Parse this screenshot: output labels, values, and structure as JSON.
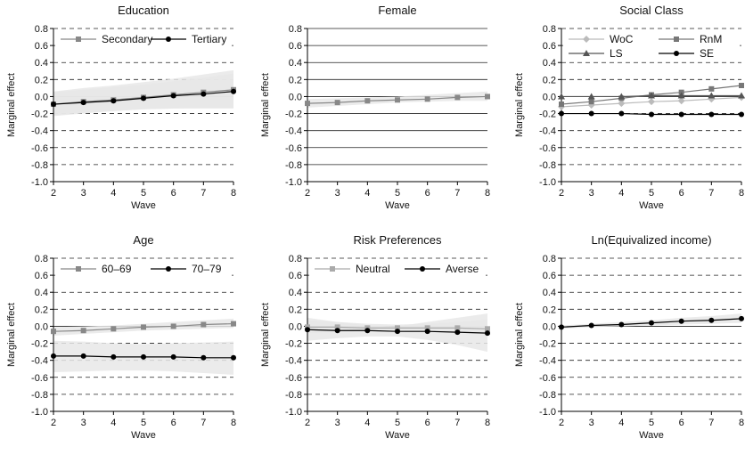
{
  "figure": {
    "ylabel": "Marginal effect",
    "xlabel": "Wave",
    "y_ticks": [
      "0.8",
      "0.6",
      "0.4",
      "0.2",
      "0.0",
      "-0.2",
      "-0.4",
      "-0.6",
      "-0.8",
      "-1.0"
    ],
    "x_ticks": [
      "2",
      "3",
      "4",
      "5",
      "6",
      "7",
      "8"
    ]
  },
  "chart_data": [
    {
      "type": "line",
      "title": "Education",
      "xlabel": "Wave",
      "ylabel": "Marginal effect",
      "x": [
        2,
        3,
        4,
        5,
        6,
        7,
        8
      ],
      "ylim": [
        -1.0,
        0.8
      ],
      "grid": "dashed",
      "legend": "top",
      "series": [
        {
          "name": "Secondary",
          "color": "#888888",
          "marker": "square",
          "values": [
            -0.09,
            -0.06,
            -0.04,
            -0.01,
            0.02,
            0.05,
            0.08
          ],
          "ci_low": [
            -0.23,
            -0.2,
            -0.17,
            -0.15,
            -0.14,
            -0.14,
            -0.14
          ],
          "ci_high": [
            0.06,
            0.1,
            0.13,
            0.17,
            0.21,
            0.26,
            0.31
          ]
        },
        {
          "name": "Tertiary",
          "color": "#000000",
          "marker": "circle",
          "values": [
            -0.09,
            -0.07,
            -0.05,
            -0.02,
            0.01,
            0.03,
            0.06
          ],
          "ci_low": [
            -0.22,
            -0.19,
            -0.17,
            -0.15,
            -0.14,
            -0.13,
            -0.13
          ],
          "ci_high": [
            0.05,
            0.08,
            0.11,
            0.14,
            0.18,
            0.22,
            0.27
          ]
        }
      ]
    },
    {
      "type": "line",
      "title": "Female",
      "xlabel": "Wave",
      "ylabel": "Marginal effect",
      "x": [
        2,
        3,
        4,
        5,
        6,
        7,
        8
      ],
      "ylim": [
        -1.0,
        0.8
      ],
      "grid": "solid",
      "legend": "none",
      "series": [
        {
          "name": "",
          "color": "#888888",
          "marker": "square",
          "values": [
            -0.08,
            -0.07,
            -0.05,
            -0.04,
            -0.03,
            -0.01,
            0.0
          ],
          "ci_low": [
            -0.13,
            -0.11,
            -0.09,
            -0.07,
            -0.06,
            -0.05,
            -0.05
          ],
          "ci_high": [
            -0.03,
            -0.02,
            -0.01,
            0.0,
            0.02,
            0.04,
            0.06
          ]
        }
      ]
    },
    {
      "type": "line",
      "title": "Social Class",
      "xlabel": "Wave",
      "ylabel": "Marginal effect",
      "x": [
        2,
        3,
        4,
        5,
        6,
        7,
        8
      ],
      "ylim": [
        -1.0,
        0.8
      ],
      "grid": "dashed",
      "legend": "top",
      "series": [
        {
          "name": "WoC",
          "color": "#bbbbbb",
          "marker": "diamond",
          "values": [
            -0.12,
            -0.1,
            -0.08,
            -0.06,
            -0.05,
            -0.03,
            -0.01
          ]
        },
        {
          "name": "RnM",
          "color": "#777777",
          "marker": "square",
          "values": [
            -0.09,
            -0.06,
            -0.02,
            0.02,
            0.05,
            0.09,
            0.13
          ]
        },
        {
          "name": "LS",
          "color": "#555555",
          "marker": "triangle",
          "values": [
            0.0,
            0.0,
            0.0,
            0.01,
            0.01,
            0.01,
            0.01
          ]
        },
        {
          "name": "SE",
          "color": "#000000",
          "marker": "circle",
          "values": [
            -0.2,
            -0.2,
            -0.2,
            -0.21,
            -0.21,
            -0.21,
            -0.21
          ]
        }
      ]
    },
    {
      "type": "line",
      "title": "Age",
      "xlabel": "Wave",
      "ylabel": "Marginal effect",
      "x": [
        2,
        3,
        4,
        5,
        6,
        7,
        8
      ],
      "ylim": [
        -1.0,
        0.8
      ],
      "grid": "dashed",
      "legend": "top",
      "series": [
        {
          "name": "60–69",
          "color": "#888888",
          "marker": "square",
          "values": [
            -0.06,
            -0.05,
            -0.03,
            -0.01,
            0.0,
            0.02,
            0.03
          ],
          "ci_low": [
            -0.11,
            -0.09,
            -0.07,
            -0.05,
            -0.04,
            -0.03,
            -0.02
          ],
          "ci_high": [
            -0.01,
            0.0,
            0.01,
            0.03,
            0.05,
            0.07,
            0.09
          ]
        },
        {
          "name": "70–79",
          "color": "#000000",
          "marker": "circle",
          "values": [
            -0.35,
            -0.35,
            -0.36,
            -0.36,
            -0.36,
            -0.37,
            -0.37
          ],
          "ci_low": [
            -0.54,
            -0.53,
            -0.52,
            -0.52,
            -0.53,
            -0.55,
            -0.57
          ],
          "ci_high": [
            -0.17,
            -0.18,
            -0.2,
            -0.21,
            -0.2,
            -0.19,
            -0.18
          ]
        }
      ]
    },
    {
      "type": "line",
      "title": "Risk Preferences",
      "xlabel": "Wave",
      "ylabel": "Marginal effect",
      "x": [
        2,
        3,
        4,
        5,
        6,
        7,
        8
      ],
      "ylim": [
        -1.0,
        0.8
      ],
      "grid": "dashed",
      "legend": "top",
      "series": [
        {
          "name": "Neutral",
          "color": "#aaaaaa",
          "marker": "square",
          "values": [
            -0.01,
            -0.01,
            -0.02,
            -0.02,
            -0.02,
            -0.02,
            -0.03
          ],
          "ci_low": [
            -0.08,
            -0.07,
            -0.06,
            -0.05,
            -0.06,
            -0.07,
            -0.09
          ],
          "ci_high": [
            0.07,
            0.05,
            0.03,
            0.02,
            0.03,
            0.05,
            0.08
          ]
        },
        {
          "name": "Averse",
          "color": "#000000",
          "marker": "circle",
          "values": [
            -0.04,
            -0.05,
            -0.05,
            -0.06,
            -0.06,
            -0.07,
            -0.08
          ],
          "ci_low": [
            -0.17,
            -0.14,
            -0.12,
            -0.12,
            -0.16,
            -0.22,
            -0.3
          ],
          "ci_high": [
            0.1,
            0.05,
            0.01,
            0.0,
            0.05,
            0.1,
            0.15
          ]
        }
      ]
    },
    {
      "type": "line",
      "title": "Ln(Equivalized income)",
      "xlabel": "Wave",
      "ylabel": "Marginal effect",
      "x": [
        2,
        3,
        4,
        5,
        6,
        7,
        8
      ],
      "ylim": [
        -1.0,
        0.8
      ],
      "grid": "dashed",
      "legend": "none",
      "series": [
        {
          "name": "",
          "color": "#000000",
          "marker": "circle",
          "values": [
            -0.01,
            0.01,
            0.02,
            0.04,
            0.06,
            0.07,
            0.09
          ],
          "ci_low": [
            -0.03,
            -0.01,
            0.0,
            0.01,
            0.02,
            0.03,
            0.04
          ],
          "ci_high": [
            0.01,
            0.03,
            0.05,
            0.07,
            0.1,
            0.12,
            0.15
          ]
        }
      ]
    }
  ]
}
